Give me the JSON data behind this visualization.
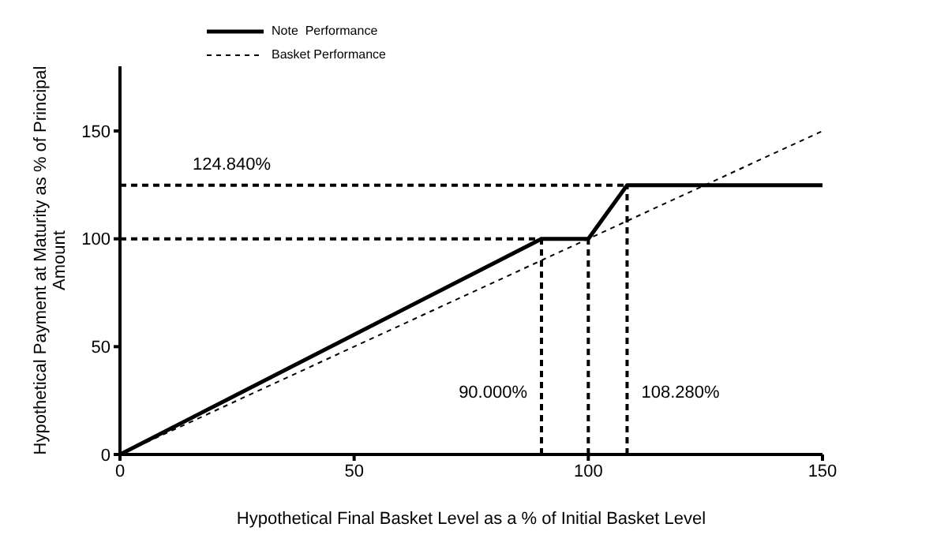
{
  "chart_data": {
    "type": "line",
    "xlabel": "Hypothetical Final Basket Level as a % of Initial  Basket Level",
    "ylabel": "Hypothetical Payment  at Maturity as % of Principal Amount",
    "series": [
      {
        "name": "Note  Performance",
        "color": "#000000",
        "x": [
          0,
          90,
          100,
          108.28,
          150
        ],
        "values": [
          0,
          100,
          100,
          124.84,
          124.84
        ],
        "line_style": "solid"
      },
      {
        "name": "Basket Performance",
        "color": "#000000",
        "x": [
          0,
          150
        ],
        "values": [
          0,
          150
        ],
        "line_style": "dashed"
      }
    ],
    "ref_lines": [
      {
        "axis": "y",
        "value": 124.84,
        "label": "124.840%",
        "color": "#000000",
        "line_style": "dashed"
      },
      {
        "axis": "y",
        "value": 100,
        "label": null,
        "color": "#000000",
        "line_style": "dashed"
      },
      {
        "axis": "x",
        "value": 90,
        "label": "90.000%",
        "color": "#000000",
        "line_style": "dashed"
      },
      {
        "axis": "x",
        "value": 100,
        "label": null,
        "color": "#000000",
        "line_style": "dashed"
      },
      {
        "axis": "x",
        "value": 108.28,
        "label": "108.280%",
        "color": "#000000",
        "line_style": "dashed"
      }
    ],
    "xlim": [
      0,
      150
    ],
    "xticks": [
      0,
      50,
      100,
      150
    ],
    "ylim": [
      0,
      180
    ],
    "yticks": [
      0,
      50,
      100,
      150
    ],
    "grid": false,
    "legend": "top",
    "marker": "none"
  }
}
